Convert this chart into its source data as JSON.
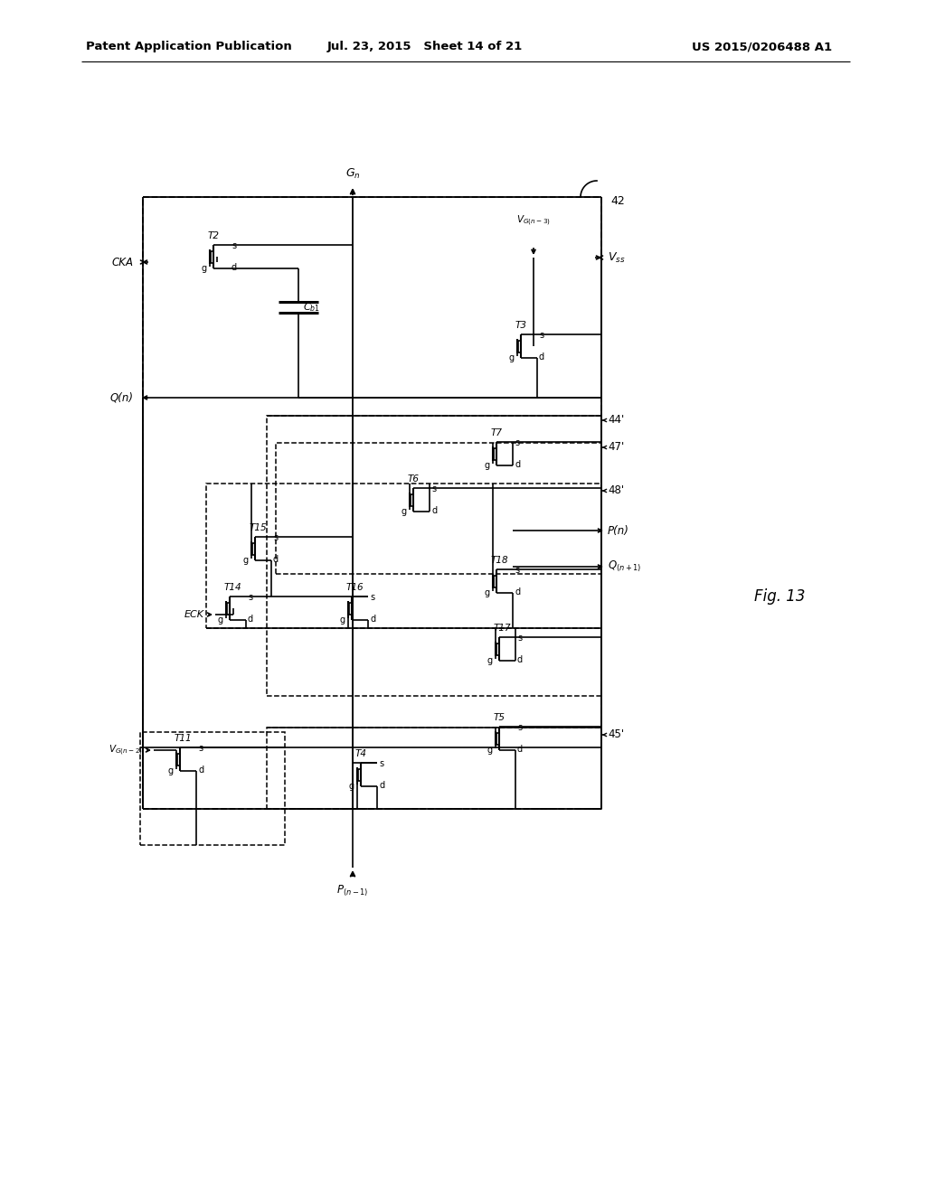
{
  "header_left": "Patent Application Publication",
  "header_mid": "Jul. 23, 2015   Sheet 14 of 21",
  "header_right": "US 2015/0206488 A1",
  "fig_label": "Fig. 13",
  "background": "#ffffff",
  "lc": "#000000",
  "tc": "#000000"
}
